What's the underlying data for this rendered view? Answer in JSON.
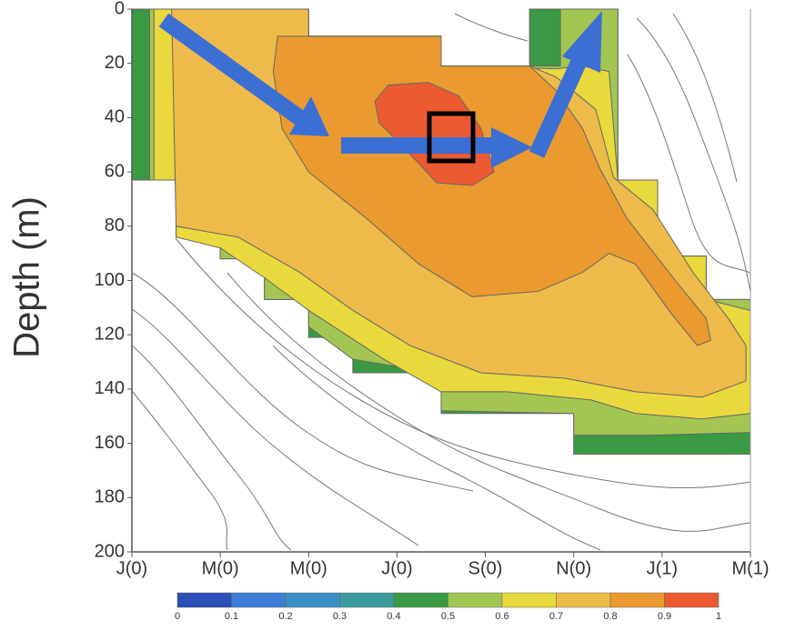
{
  "chart_data": {
    "type": "contour",
    "y_label": "Depth (m)",
    "xlim": [
      0,
      14
    ],
    "xticks": [
      {
        "value": 0,
        "label": "J(0)"
      },
      {
        "value": 2,
        "label": "M(0)"
      },
      {
        "value": 4,
        "label": "M(0)"
      },
      {
        "value": 6,
        "label": "J(0)"
      },
      {
        "value": 8,
        "label": "S(0)"
      },
      {
        "value": 10,
        "label": "N(0)"
      },
      {
        "value": 12,
        "label": "J(1)"
      },
      {
        "value": 14,
        "label": "M(1)"
      }
    ],
    "ylim": [
      0,
      200
    ],
    "yticks": [
      0,
      20,
      40,
      60,
      80,
      100,
      120,
      140,
      160,
      180,
      200
    ],
    "colorbar": {
      "levels": [
        0,
        0.1,
        0.2,
        0.3,
        0.4,
        0.5,
        0.6,
        0.7,
        0.8,
        0.9,
        1
      ],
      "colors": [
        "#2b4fb8",
        "#3d7fd6",
        "#3a8fc9",
        "#3a9a9e",
        "#3a9a44",
        "#a3c652",
        "#e9d93c",
        "#eebb4a",
        "#ea9a2e",
        "#ec5a32"
      ]
    },
    "regions": [
      {
        "level": 0.4,
        "points": [
          [
            0,
            0
          ],
          [
            4,
            0
          ],
          [
            4,
            10
          ],
          [
            7,
            10
          ],
          [
            7,
            21
          ],
          [
            9,
            21
          ],
          [
            9,
            0
          ],
          [
            11,
            0
          ],
          [
            11,
            63
          ],
          [
            11.9,
            63
          ],
          [
            11.9,
            91
          ],
          [
            13,
            91
          ],
          [
            13,
            107
          ],
          [
            14,
            107
          ],
          [
            14,
            164
          ],
          [
            10,
            164
          ],
          [
            10,
            149
          ],
          [
            7,
            149
          ],
          [
            7,
            134
          ],
          [
            5,
            134
          ],
          [
            5,
            121
          ],
          [
            4,
            121
          ],
          [
            4,
            107
          ],
          [
            3,
            107
          ],
          [
            3,
            92
          ],
          [
            2,
            92
          ],
          [
            2,
            84
          ],
          [
            1,
            84
          ],
          [
            1,
            63
          ],
          [
            0,
            63
          ]
        ]
      },
      {
        "level": 0.5,
        "points": [
          [
            0.4,
            0
          ],
          [
            4,
            0
          ],
          [
            4,
            10
          ],
          [
            7,
            10
          ],
          [
            7,
            21
          ],
          [
            9.7,
            21
          ],
          [
            9.7,
            0
          ],
          [
            11,
            0
          ],
          [
            11,
            63
          ],
          [
            11.9,
            63
          ],
          [
            11.9,
            91
          ],
          [
            13,
            91
          ],
          [
            13,
            107
          ],
          [
            14,
            107
          ],
          [
            14,
            156
          ],
          [
            11.8,
            157
          ],
          [
            10,
            157
          ],
          [
            10,
            149
          ],
          [
            7,
            148
          ],
          [
            7,
            134
          ],
          [
            6.1,
            132
          ],
          [
            5,
            129
          ],
          [
            4,
            117
          ],
          [
            4,
            107
          ],
          [
            3,
            107
          ],
          [
            3,
            92
          ],
          [
            2,
            92
          ],
          [
            2,
            84
          ],
          [
            1,
            84
          ],
          [
            1,
            63
          ],
          [
            0.4,
            63
          ]
        ]
      },
      {
        "level": 0.6,
        "points": [
          [
            0.5,
            0
          ],
          [
            4,
            0
          ],
          [
            4,
            10
          ],
          [
            7,
            10
          ],
          [
            7,
            21
          ],
          [
            9.6,
            22
          ],
          [
            10.2,
            21
          ],
          [
            10.8,
            23
          ],
          [
            11,
            63
          ],
          [
            11.9,
            63
          ],
          [
            11.9,
            91
          ],
          [
            13,
            91
          ],
          [
            13,
            107
          ],
          [
            14,
            111
          ],
          [
            14,
            149
          ],
          [
            12.9,
            151
          ],
          [
            11.4,
            149
          ],
          [
            10.4,
            144
          ],
          [
            8.5,
            141
          ],
          [
            7,
            141
          ],
          [
            5.7,
            129
          ],
          [
            4,
            111
          ],
          [
            3,
            99
          ],
          [
            2,
            88
          ],
          [
            1,
            84
          ],
          [
            1,
            63
          ],
          [
            0.5,
            63
          ]
        ]
      },
      {
        "level": 0.7,
        "points": [
          [
            0.9,
            0
          ],
          [
            4,
            0
          ],
          [
            4,
            10
          ],
          [
            7,
            10
          ],
          [
            7,
            21
          ],
          [
            9,
            21
          ],
          [
            9.6,
            25
          ],
          [
            10.5,
            37
          ],
          [
            10.9,
            62
          ],
          [
            11.8,
            74
          ],
          [
            12.7,
            97
          ],
          [
            13.5,
            114
          ],
          [
            13.9,
            124
          ],
          [
            13.9,
            137
          ],
          [
            12.9,
            143
          ],
          [
            11.4,
            141
          ],
          [
            9.8,
            136
          ],
          [
            7.9,
            134
          ],
          [
            6.3,
            124
          ],
          [
            5,
            111
          ],
          [
            3.8,
            97
          ],
          [
            2.4,
            84
          ],
          [
            1,
            80
          ]
        ]
      },
      {
        "level": 0.8,
        "points": [
          [
            3.3,
            10
          ],
          [
            7,
            10
          ],
          [
            7,
            21
          ],
          [
            9,
            21
          ],
          [
            9.6,
            30
          ],
          [
            10.2,
            44
          ],
          [
            10.6,
            59
          ],
          [
            11.2,
            77
          ],
          [
            12.3,
            100
          ],
          [
            13,
            114
          ],
          [
            13.1,
            122
          ],
          [
            12.8,
            124
          ],
          [
            12.2,
            112
          ],
          [
            11.4,
            94
          ],
          [
            10.8,
            90
          ],
          [
            10.2,
            97
          ],
          [
            9.2,
            104
          ],
          [
            7.7,
            106
          ],
          [
            6.5,
            94
          ],
          [
            5.3,
            77
          ],
          [
            4,
            60
          ],
          [
            3.4,
            44
          ],
          [
            3.2,
            23
          ]
        ]
      },
      {
        "level": 0.9,
        "points": [
          [
            5.5,
            34
          ],
          [
            5.8,
            28
          ],
          [
            6.7,
            27
          ],
          [
            7.4,
            32
          ],
          [
            7.9,
            44
          ],
          [
            8.2,
            60
          ],
          [
            7.7,
            65
          ],
          [
            6.9,
            64
          ],
          [
            6.1,
            50
          ],
          [
            5.6,
            42
          ]
        ]
      }
    ]
  }
}
